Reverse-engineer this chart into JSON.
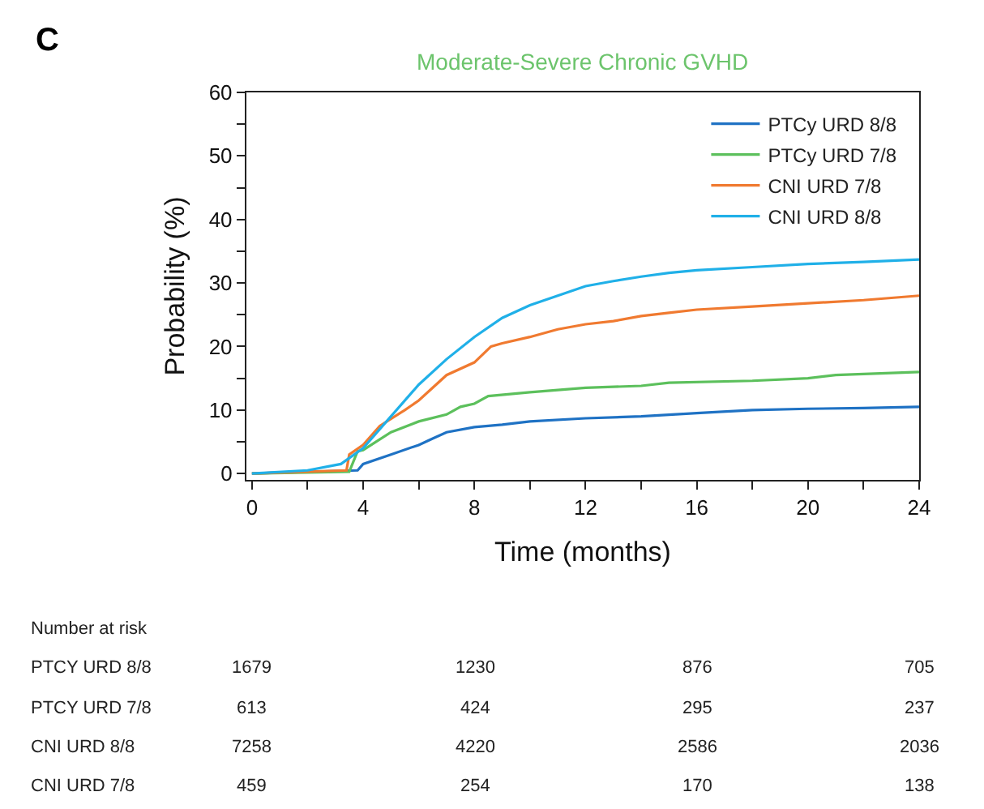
{
  "chart_data": {
    "type": "line",
    "title": "Moderate-Severe Chronic GVHD",
    "xlabel": "Time (months)",
    "ylabel": "Probability (%)",
    "series": [
      {
        "name": "PTCy URD 8/8",
        "color": "#1f72c4",
        "x": [
          0,
          3.8,
          4,
          5,
          6,
          6.5,
          7,
          8,
          9,
          10,
          12,
          14,
          16,
          18,
          20,
          22,
          24
        ],
        "values": [
          0,
          0.5,
          1.5,
          3,
          4.5,
          5.5,
          6.5,
          7.3,
          7.7,
          8.2,
          8.7,
          9,
          9.5,
          10,
          10.2,
          10.3,
          10.5
        ]
      },
      {
        "name": "PTCy URD 7/8",
        "color": "#5cc05c",
        "x": [
          0,
          3.5,
          3.8,
          4,
          5,
          6,
          7,
          7.5,
          8,
          8.5,
          10,
          12,
          14,
          15,
          18,
          20,
          21,
          24
        ],
        "values": [
          0,
          0.3,
          3.5,
          3.7,
          6.5,
          8.2,
          9.3,
          10.5,
          11,
          12.2,
          12.8,
          13.5,
          13.8,
          14.3,
          14.6,
          15,
          15.5,
          16
        ]
      },
      {
        "name": "CNI URD 7/8",
        "color": "#f07a30",
        "x": [
          0,
          3.4,
          3.5,
          4,
          4.6,
          5.5,
          6,
          7,
          8,
          8.6,
          9,
          10,
          11,
          12,
          13,
          14,
          15,
          16,
          18,
          20,
          22,
          24
        ],
        "values": [
          0,
          0.5,
          3,
          4.5,
          7.5,
          10,
          11.5,
          15.5,
          17.5,
          20,
          20.5,
          21.5,
          22.7,
          23.5,
          24,
          24.8,
          25.3,
          25.8,
          26.3,
          26.8,
          27.3,
          28
        ]
      },
      {
        "name": "CNI URD 8/8",
        "color": "#20b0e8",
        "x": [
          0,
          2,
          3.2,
          4,
          5,
          6,
          7,
          8,
          9,
          10,
          11,
          12,
          13,
          14,
          15,
          16,
          18,
          20,
          22,
          24
        ],
        "values": [
          0,
          0.5,
          1.5,
          4,
          9,
          14,
          18,
          21.5,
          24.5,
          26.5,
          28,
          29.5,
          30.3,
          31,
          31.6,
          32,
          32.5,
          33,
          33.3,
          33.7
        ]
      }
    ],
    "xlim": [
      -0.2,
      24
    ],
    "xticks": [
      0,
      {
        "value": 2,
        "label": null
      },
      4,
      {
        "value": 6,
        "label": null
      },
      8,
      {
        "value": 10,
        "label": null
      },
      12,
      {
        "value": 14,
        "label": null
      },
      16,
      {
        "value": 18,
        "label": null
      },
      20,
      {
        "value": 22,
        "label": null
      },
      24
    ],
    "ylim": [
      -1,
      60
    ],
    "yticks": [
      0,
      {
        "value": 5,
        "label": null
      },
      10,
      {
        "value": 15,
        "label": null
      },
      20,
      {
        "value": 25,
        "label": null
      },
      30,
      {
        "value": 35,
        "label": null
      },
      40,
      {
        "value": 45,
        "label": null
      },
      50,
      {
        "value": 55,
        "label": null
      },
      60
    ],
    "legend": "top right",
    "grid": false,
    "marker": "none",
    "line_style": "solid",
    "annotations": [
      "C",
      "Number at risk",
      "PTCY URD 8/8",
      "1679",
      "1230",
      "876",
      "705",
      "PTCY URD 7/8",
      "613",
      "424",
      "295",
      "237",
      "CNI URD 8/8",
      "7258",
      "4220",
      "2586",
      "2036",
      "CNI URD 7/8",
      "459",
      "254",
      "170",
      "138"
    ]
  }
}
